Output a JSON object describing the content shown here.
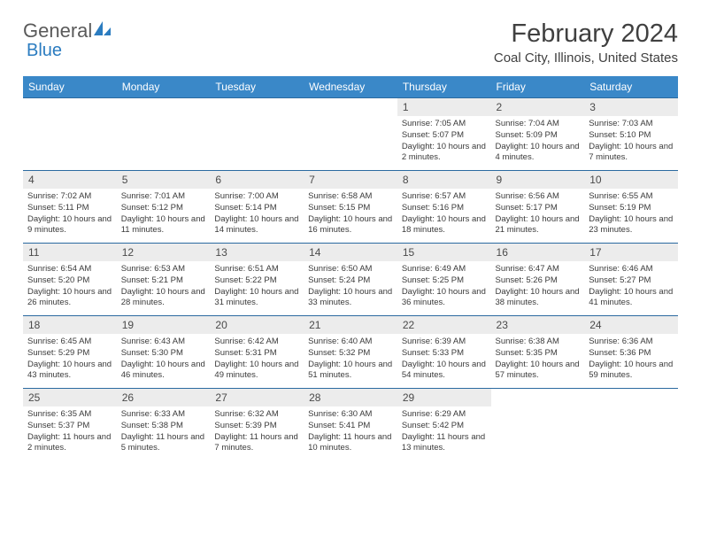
{
  "logo": {
    "text1": "General",
    "text2": "Blue"
  },
  "title": "February 2024",
  "location": "Coal City, Illinois, United States",
  "colors": {
    "header_bg": "#3a88c8",
    "header_text": "#ffffff",
    "week_border": "#2b6aa0",
    "daynum_bg": "#ececec",
    "text": "#3a3a3a",
    "logo_gray": "#5a5a5a",
    "logo_blue": "#2b7cc0"
  },
  "daysOfWeek": [
    "Sunday",
    "Monday",
    "Tuesday",
    "Wednesday",
    "Thursday",
    "Friday",
    "Saturday"
  ],
  "weeks": [
    [
      null,
      null,
      null,
      null,
      {
        "n": "1",
        "sunrise": "7:05 AM",
        "sunset": "5:07 PM",
        "daylight": "10 hours and 2 minutes."
      },
      {
        "n": "2",
        "sunrise": "7:04 AM",
        "sunset": "5:09 PM",
        "daylight": "10 hours and 4 minutes."
      },
      {
        "n": "3",
        "sunrise": "7:03 AM",
        "sunset": "5:10 PM",
        "daylight": "10 hours and 7 minutes."
      }
    ],
    [
      {
        "n": "4",
        "sunrise": "7:02 AM",
        "sunset": "5:11 PM",
        "daylight": "10 hours and 9 minutes."
      },
      {
        "n": "5",
        "sunrise": "7:01 AM",
        "sunset": "5:12 PM",
        "daylight": "10 hours and 11 minutes."
      },
      {
        "n": "6",
        "sunrise": "7:00 AM",
        "sunset": "5:14 PM",
        "daylight": "10 hours and 14 minutes."
      },
      {
        "n": "7",
        "sunrise": "6:58 AM",
        "sunset": "5:15 PM",
        "daylight": "10 hours and 16 minutes."
      },
      {
        "n": "8",
        "sunrise": "6:57 AM",
        "sunset": "5:16 PM",
        "daylight": "10 hours and 18 minutes."
      },
      {
        "n": "9",
        "sunrise": "6:56 AM",
        "sunset": "5:17 PM",
        "daylight": "10 hours and 21 minutes."
      },
      {
        "n": "10",
        "sunrise": "6:55 AM",
        "sunset": "5:19 PM",
        "daylight": "10 hours and 23 minutes."
      }
    ],
    [
      {
        "n": "11",
        "sunrise": "6:54 AM",
        "sunset": "5:20 PM",
        "daylight": "10 hours and 26 minutes."
      },
      {
        "n": "12",
        "sunrise": "6:53 AM",
        "sunset": "5:21 PM",
        "daylight": "10 hours and 28 minutes."
      },
      {
        "n": "13",
        "sunrise": "6:51 AM",
        "sunset": "5:22 PM",
        "daylight": "10 hours and 31 minutes."
      },
      {
        "n": "14",
        "sunrise": "6:50 AM",
        "sunset": "5:24 PM",
        "daylight": "10 hours and 33 minutes."
      },
      {
        "n": "15",
        "sunrise": "6:49 AM",
        "sunset": "5:25 PM",
        "daylight": "10 hours and 36 minutes."
      },
      {
        "n": "16",
        "sunrise": "6:47 AM",
        "sunset": "5:26 PM",
        "daylight": "10 hours and 38 minutes."
      },
      {
        "n": "17",
        "sunrise": "6:46 AM",
        "sunset": "5:27 PM",
        "daylight": "10 hours and 41 minutes."
      }
    ],
    [
      {
        "n": "18",
        "sunrise": "6:45 AM",
        "sunset": "5:29 PM",
        "daylight": "10 hours and 43 minutes."
      },
      {
        "n": "19",
        "sunrise": "6:43 AM",
        "sunset": "5:30 PM",
        "daylight": "10 hours and 46 minutes."
      },
      {
        "n": "20",
        "sunrise": "6:42 AM",
        "sunset": "5:31 PM",
        "daylight": "10 hours and 49 minutes."
      },
      {
        "n": "21",
        "sunrise": "6:40 AM",
        "sunset": "5:32 PM",
        "daylight": "10 hours and 51 minutes."
      },
      {
        "n": "22",
        "sunrise": "6:39 AM",
        "sunset": "5:33 PM",
        "daylight": "10 hours and 54 minutes."
      },
      {
        "n": "23",
        "sunrise": "6:38 AM",
        "sunset": "5:35 PM",
        "daylight": "10 hours and 57 minutes."
      },
      {
        "n": "24",
        "sunrise": "6:36 AM",
        "sunset": "5:36 PM",
        "daylight": "10 hours and 59 minutes."
      }
    ],
    [
      {
        "n": "25",
        "sunrise": "6:35 AM",
        "sunset": "5:37 PM",
        "daylight": "11 hours and 2 minutes."
      },
      {
        "n": "26",
        "sunrise": "6:33 AM",
        "sunset": "5:38 PM",
        "daylight": "11 hours and 5 minutes."
      },
      {
        "n": "27",
        "sunrise": "6:32 AM",
        "sunset": "5:39 PM",
        "daylight": "11 hours and 7 minutes."
      },
      {
        "n": "28",
        "sunrise": "6:30 AM",
        "sunset": "5:41 PM",
        "daylight": "11 hours and 10 minutes."
      },
      {
        "n": "29",
        "sunrise": "6:29 AM",
        "sunset": "5:42 PM",
        "daylight": "11 hours and 13 minutes."
      },
      null,
      null
    ]
  ],
  "labels": {
    "sunrise": "Sunrise:",
    "sunset": "Sunset:",
    "daylight": "Daylight:"
  }
}
